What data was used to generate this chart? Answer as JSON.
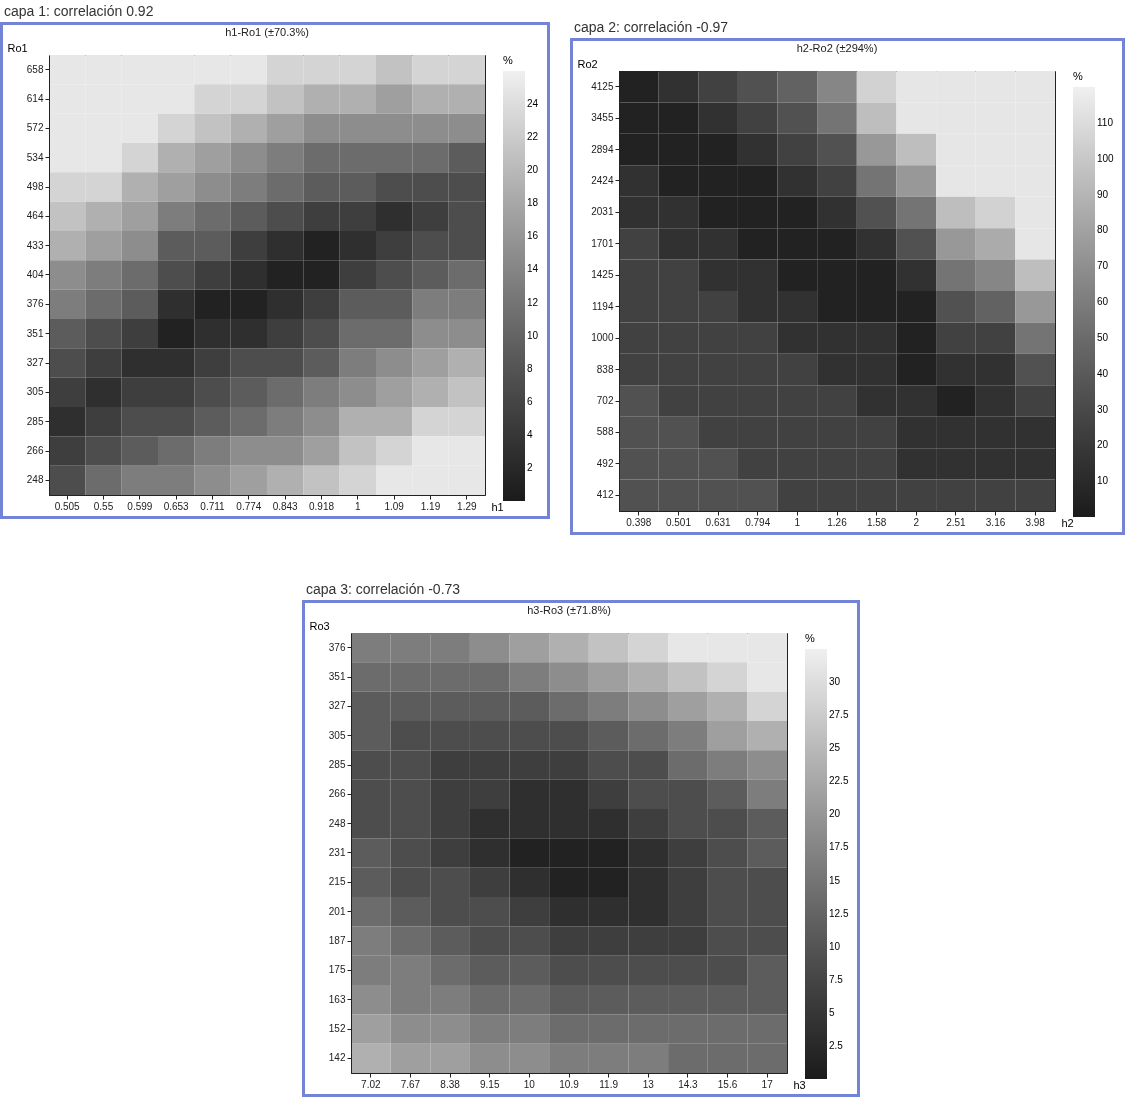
{
  "chart_data": [
    {
      "type": "heatmap",
      "title": "capa 1: correlación  0.92",
      "subtitle": "h1-Ro1   (±70.3%)",
      "xlabel": "h1",
      "ylabel": "Ro1",
      "clabel": "%",
      "categories": [
        "0.505",
        "0.55",
        "0.599",
        "0.653",
        "0.711",
        "0.774",
        "0.843",
        "0.918",
        "1",
        "1.09",
        "1.19",
        "1.29"
      ],
      "y_categories": [
        "658",
        "614",
        "572",
        "534",
        "498",
        "464",
        "433",
        "404",
        "376",
        "351",
        "327",
        "305",
        "285",
        "266",
        "248"
      ],
      "cells": [
        [
          25,
          25,
          25,
          25,
          25,
          25,
          23,
          23,
          23,
          21,
          23,
          23
        ],
        [
          25,
          25,
          25,
          25,
          23,
          23,
          21,
          19,
          19,
          17,
          19,
          19
        ],
        [
          25,
          25,
          25,
          23,
          21,
          19,
          17,
          15,
          15,
          15,
          15,
          15
        ],
        [
          25,
          25,
          23,
          19,
          17,
          15,
          13,
          11,
          11,
          11,
          11,
          9
        ],
        [
          23,
          23,
          19,
          17,
          15,
          13,
          11,
          9,
          9,
          7,
          7,
          7
        ],
        [
          21,
          19,
          17,
          13,
          11,
          9,
          7,
          5,
          5,
          3,
          5,
          7
        ],
        [
          19,
          17,
          15,
          9,
          9,
          5,
          3,
          1,
          3,
          5,
          7,
          7
        ],
        [
          15,
          13,
          11,
          7,
          5,
          3,
          1,
          1,
          5,
          7,
          9,
          11
        ],
        [
          13,
          11,
          9,
          3,
          1,
          1,
          3,
          5,
          9,
          9,
          13,
          13
        ],
        [
          9,
          7,
          5,
          1,
          3,
          3,
          5,
          7,
          11,
          11,
          15,
          15
        ],
        [
          7,
          5,
          3,
          3,
          5,
          7,
          7,
          9,
          13,
          15,
          17,
          19
        ],
        [
          5,
          3,
          5,
          5,
          7,
          9,
          11,
          13,
          15,
          17,
          19,
          21
        ],
        [
          3,
          5,
          7,
          7,
          9,
          11,
          13,
          15,
          19,
          19,
          23,
          23
        ],
        [
          5,
          7,
          9,
          11,
          13,
          15,
          15,
          17,
          21,
          23,
          25,
          25
        ],
        [
          7,
          11,
          13,
          13,
          15,
          17,
          19,
          21,
          23,
          25,
          25,
          25
        ]
      ],
      "clim": [
        0,
        26
      ],
      "cticks": [
        2,
        4,
        6,
        8,
        10,
        12,
        14,
        16,
        18,
        20,
        22,
        24
      ]
    },
    {
      "type": "heatmap",
      "title": "capa 2: correlación  -0.97",
      "subtitle": "h2-Ro2   (±294%)",
      "xlabel": "h2",
      "ylabel": "Ro2",
      "clabel": "%",
      "categories": [
        "0.398",
        "0.501",
        "0.631",
        "0.794",
        "1",
        "1.26",
        "1.58",
        "2",
        "2.51",
        "3.16",
        "3.98"
      ],
      "y_categories": [
        "4125",
        "3455",
        "2894",
        "2424",
        "2031",
        "1701",
        "1425",
        "1194",
        "1000",
        "838",
        "702",
        "588",
        "492",
        "412"
      ],
      "cells": [
        [
          5,
          15,
          25,
          35,
          45,
          65,
          105,
          115,
          115,
          115,
          115
        ],
        [
          5,
          5,
          15,
          25,
          35,
          55,
          95,
          115,
          115,
          115,
          115
        ],
        [
          5,
          5,
          5,
          15,
          25,
          35,
          75,
          95,
          115,
          115,
          115
        ],
        [
          15,
          5,
          5,
          5,
          15,
          25,
          55,
          75,
          115,
          115,
          115
        ],
        [
          15,
          15,
          5,
          5,
          5,
          15,
          35,
          55,
          95,
          105,
          115
        ],
        [
          25,
          15,
          15,
          5,
          5,
          5,
          15,
          35,
          75,
          85,
          115
        ],
        [
          25,
          25,
          15,
          15,
          5,
          5,
          5,
          15,
          55,
          65,
          95
        ],
        [
          25,
          25,
          25,
          15,
          15,
          5,
          5,
          5,
          35,
          45,
          75
        ],
        [
          25,
          25,
          25,
          25,
          15,
          15,
          15,
          5,
          25,
          25,
          55
        ],
        [
          25,
          25,
          25,
          25,
          25,
          15,
          15,
          5,
          15,
          15,
          35
        ],
        [
          35,
          25,
          25,
          25,
          25,
          25,
          15,
          15,
          5,
          15,
          25
        ],
        [
          35,
          35,
          25,
          25,
          25,
          25,
          25,
          15,
          15,
          15,
          15
        ],
        [
          35,
          35,
          35,
          25,
          25,
          25,
          25,
          15,
          15,
          15,
          15
        ],
        [
          35,
          35,
          35,
          35,
          25,
          25,
          25,
          25,
          25,
          25,
          25
        ]
      ],
      "clim": [
        0,
        120
      ],
      "cticks": [
        10,
        20,
        30,
        40,
        50,
        60,
        70,
        80,
        90,
        100,
        110
      ]
    },
    {
      "type": "heatmap",
      "title": "capa 3: correlación  -0.73",
      "subtitle": "h3-Ro3   (±71.8%)",
      "xlabel": "h3",
      "ylabel": "Ro3",
      "clabel": "%",
      "categories": [
        "7.02",
        "7.67",
        "8.38",
        "9.15",
        "10",
        "10.9",
        "11.9",
        "13",
        "14.3",
        "15.6",
        "17"
      ],
      "y_categories": [
        "376",
        "351",
        "327",
        "305",
        "285",
        "266",
        "248",
        "231",
        "215",
        "201",
        "187",
        "175",
        "163",
        "152",
        "142"
      ],
      "cells": [
        [
          16.25,
          16.25,
          16.25,
          18.75,
          21.25,
          23.75,
          26.25,
          28.75,
          31.25,
          31.25,
          31.25
        ],
        [
          13.75,
          13.75,
          13.75,
          13.75,
          16.25,
          18.75,
          21.25,
          23.75,
          26.25,
          28.75,
          31.25
        ],
        [
          11.25,
          11.25,
          11.25,
          11.25,
          11.25,
          13.75,
          16.25,
          18.75,
          21.25,
          23.75,
          28.75
        ],
        [
          11.25,
          8.75,
          8.75,
          8.75,
          8.75,
          8.75,
          11.25,
          13.75,
          16.25,
          21.25,
          23.75
        ],
        [
          8.75,
          8.75,
          6.25,
          6.25,
          6.25,
          6.25,
          8.75,
          8.75,
          13.75,
          16.25,
          18.75
        ],
        [
          8.75,
          8.75,
          6.25,
          6.25,
          3.75,
          3.75,
          6.25,
          8.75,
          8.75,
          11.25,
          16.25
        ],
        [
          8.75,
          8.75,
          6.25,
          3.75,
          3.75,
          3.75,
          3.75,
          6.25,
          8.75,
          8.75,
          11.25
        ],
        [
          11.25,
          8.75,
          6.25,
          3.75,
          1.25,
          1.25,
          1.25,
          3.75,
          6.25,
          8.75,
          11.25
        ],
        [
          11.25,
          8.75,
          8.75,
          6.25,
          3.75,
          1.25,
          1.25,
          3.75,
          6.25,
          8.75,
          8.75
        ],
        [
          13.75,
          11.25,
          8.75,
          8.75,
          6.25,
          3.75,
          3.75,
          3.75,
          6.25,
          8.75,
          8.75
        ],
        [
          16.25,
          13.75,
          11.25,
          8.75,
          8.75,
          6.25,
          6.25,
          6.25,
          6.25,
          8.75,
          8.75
        ],
        [
          16.25,
          16.25,
          13.75,
          11.25,
          11.25,
          8.75,
          8.75,
          8.75,
          8.75,
          8.75,
          11.25
        ],
        [
          18.75,
          16.25,
          16.25,
          13.75,
          13.75,
          11.25,
          11.25,
          11.25,
          11.25,
          11.25,
          11.25
        ],
        [
          21.25,
          18.75,
          18.75,
          16.25,
          16.25,
          13.75,
          13.75,
          13.75,
          13.75,
          13.75,
          13.75
        ],
        [
          23.75,
          21.25,
          21.25,
          18.75,
          18.75,
          16.25,
          16.25,
          16.25,
          13.75,
          13.75,
          13.75
        ]
      ],
      "clim": [
        0,
        32.5
      ],
      "cticks": [
        2.5,
        5,
        7.5,
        10,
        12.5,
        15,
        17.5,
        20,
        22.5,
        25,
        27.5,
        30
      ]
    }
  ]
}
